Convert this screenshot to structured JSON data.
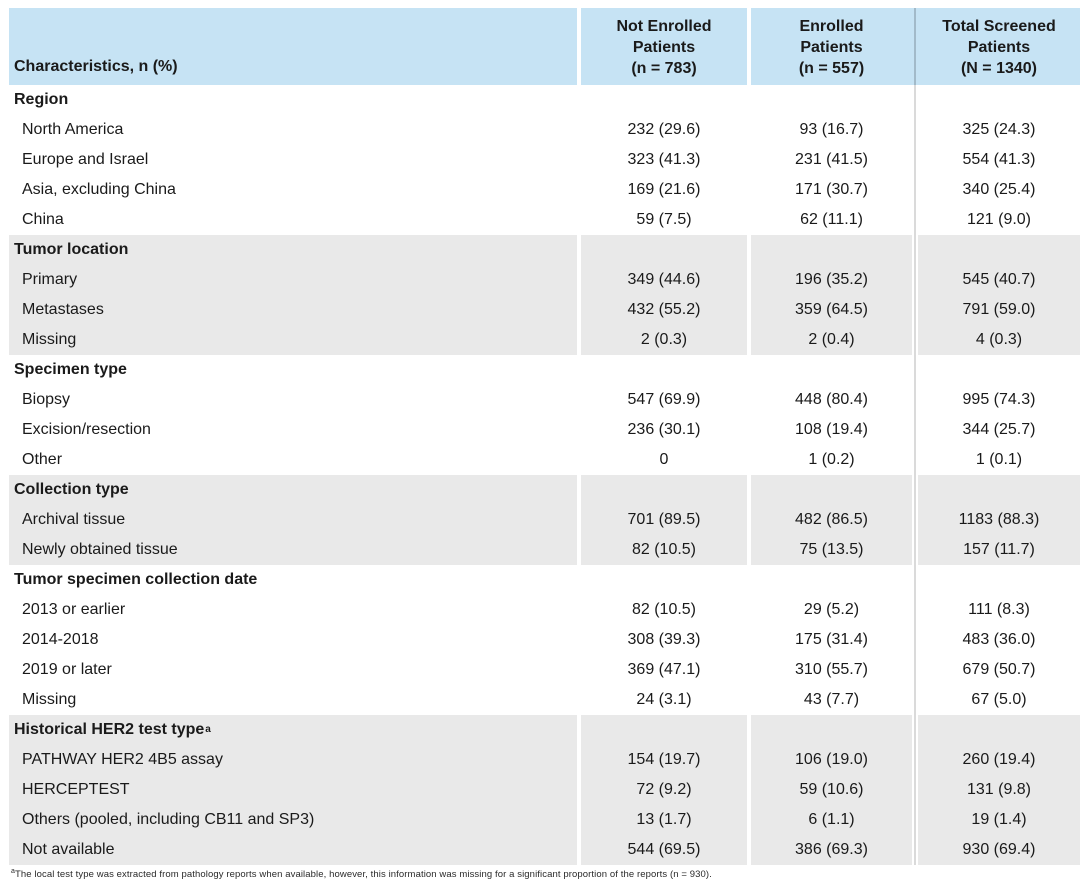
{
  "colors": {
    "header_bg": "#c6e3f4",
    "shaded_section_bg": "#e9e9e9",
    "divider_line": "#b4b4b4",
    "header_divider_line": "#7d929e",
    "text": "#1a1a1a"
  },
  "table": {
    "header": {
      "characteristics_label": "Characteristics, n (%)",
      "columns": [
        "Not Enrolled\nPatients\n(n = 783)",
        "Enrolled\nPatients\n(n = 557)",
        "Total Screened\nPatients\n(N = 1340)"
      ]
    },
    "sections": [
      {
        "title": "Region",
        "shaded": false,
        "rows": [
          {
            "label": "North America",
            "values": [
              "232 (29.6)",
              "93 (16.7)",
              "325 (24.3)"
            ]
          },
          {
            "label": "Europe and Israel",
            "values": [
              "323 (41.3)",
              "231 (41.5)",
              "554 (41.3)"
            ]
          },
          {
            "label": "Asia, excluding China",
            "values": [
              "169 (21.6)",
              "171 (30.7)",
              "340 (25.4)"
            ]
          },
          {
            "label": "China",
            "values": [
              "59 (7.5)",
              "62 (11.1)",
              "121 (9.0)"
            ]
          }
        ]
      },
      {
        "title": "Tumor location",
        "shaded": true,
        "rows": [
          {
            "label": "Primary",
            "values": [
              "349 (44.6)",
              "196 (35.2)",
              "545 (40.7)"
            ]
          },
          {
            "label": "Metastases",
            "values": [
              "432 (55.2)",
              "359 (64.5)",
              "791 (59.0)"
            ]
          },
          {
            "label": "Missing",
            "values": [
              "2 (0.3)",
              "2 (0.4)",
              "4 (0.3)"
            ]
          }
        ]
      },
      {
        "title": "Specimen type",
        "shaded": false,
        "rows": [
          {
            "label": "Biopsy",
            "values": [
              "547 (69.9)",
              "448 (80.4)",
              "995 (74.3)"
            ]
          },
          {
            "label": "Excision/resection",
            "values": [
              "236 (30.1)",
              "108 (19.4)",
              "344 (25.7)"
            ]
          },
          {
            "label": "Other",
            "values": [
              "0",
              "1 (0.2)",
              "1 (0.1)"
            ]
          }
        ]
      },
      {
        "title": "Collection type",
        "shaded": true,
        "rows": [
          {
            "label": "Archival tissue",
            "values": [
              "701 (89.5)",
              "482 (86.5)",
              "1183 (88.3)"
            ]
          },
          {
            "label": "Newly obtained tissue",
            "values": [
              "82 (10.5)",
              "75 (13.5)",
              "157 (11.7)"
            ]
          }
        ]
      },
      {
        "title": "Tumor specimen collection date",
        "shaded": false,
        "rows": [
          {
            "label": "2013 or earlier",
            "values": [
              "82 (10.5)",
              "29 (5.2)",
              "111 (8.3)"
            ]
          },
          {
            "label": "2014-2018",
            "values": [
              "308 (39.3)",
              "175 (31.4)",
              "483 (36.0)"
            ]
          },
          {
            "label": "2019 or later",
            "values": [
              "369 (47.1)",
              "310 (55.7)",
              "679 (50.7)"
            ]
          },
          {
            "label": "Missing",
            "values": [
              "24 (3.1)",
              "43 (7.7)",
              "67 (5.0)"
            ]
          }
        ]
      },
      {
        "title": "Historical HER2 test type",
        "superscript": "a",
        "shaded": true,
        "rows": [
          {
            "label": "PATHWAY HER2 4B5 assay",
            "values": [
              "154 (19.7)",
              "106 (19.0)",
              "260 (19.4)"
            ]
          },
          {
            "label": "HERCEPTEST",
            "values": [
              "72 (9.2)",
              "59 (10.6)",
              "131 (9.8)"
            ]
          },
          {
            "label": "Others (pooled, including CB11 and SP3)",
            "values": [
              "13 (1.7)",
              "6 (1.1)",
              "19 (1.4)"
            ]
          },
          {
            "label": "Not available",
            "values": [
              "544 (69.5)",
              "386 (69.3)",
              "930 (69.4)"
            ]
          }
        ]
      }
    ],
    "footnote_marker": "a",
    "footnote": "The local test type was extracted from pathology reports when available, however, this information was missing for a significant proportion of the reports (n = 930)."
  }
}
